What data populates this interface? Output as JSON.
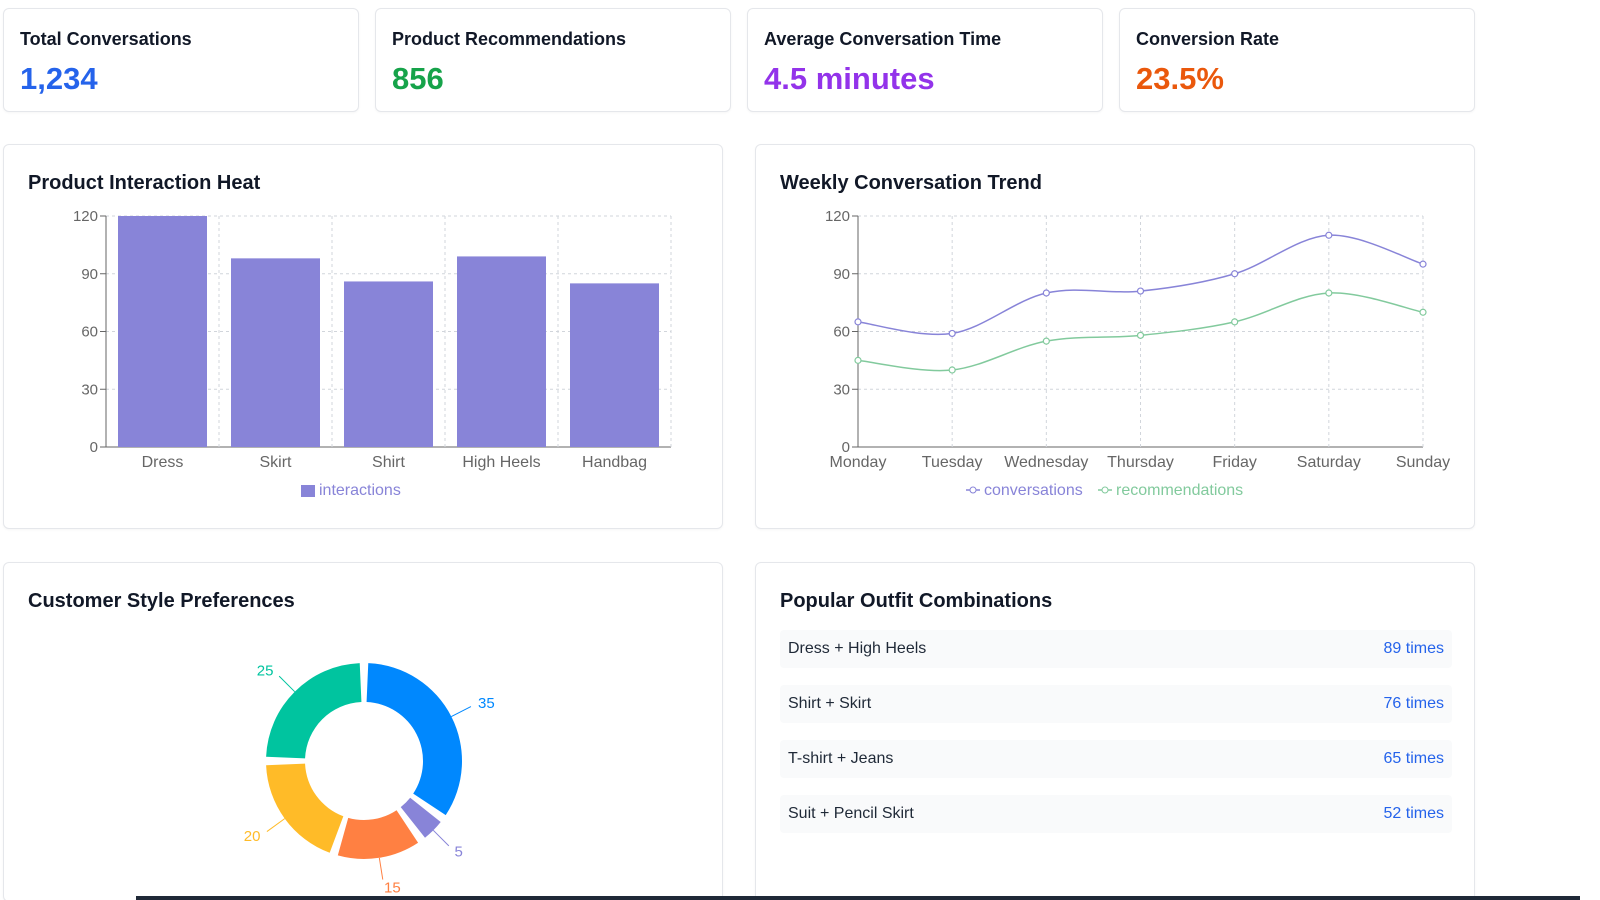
{
  "stats": [
    {
      "title": "Total Conversations",
      "value": "1,234",
      "color": "#2563eb"
    },
    {
      "title": "Product Recommendations",
      "value": "856",
      "color": "#16a34a"
    },
    {
      "title": "Average Conversation Time",
      "value": "4.5 minutes",
      "color": "#9333ea"
    },
    {
      "title": "Conversion Rate",
      "value": "23.5%",
      "color": "#ea580c"
    }
  ],
  "panels": {
    "heat_title": "Product Interaction Heat",
    "trend_title": "Weekly Conversation Trend",
    "style_title": "Customer Style Preferences",
    "outfit_title": "Popular Outfit Combinations"
  },
  "outfits": [
    {
      "name": "Dress + High Heels",
      "count": "89 times"
    },
    {
      "name": "Shirt + Skirt",
      "count": "76 times"
    },
    {
      "name": "T-shirt + Jeans",
      "count": "65 times"
    },
    {
      "name": "Suit + Pencil Skirt",
      "count": "52 times"
    }
  ],
  "chart_data": [
    {
      "type": "bar",
      "title": "Product Interaction Heat",
      "categories": [
        "Dress",
        "Skirt",
        "Shirt",
        "High Heels",
        "Handbag"
      ],
      "series": [
        {
          "name": "interactions",
          "values": [
            120,
            98,
            86,
            99,
            85
          ],
          "color": "#8884d8"
        }
      ],
      "ylim": [
        0,
        120
      ],
      "yticks": [
        0,
        30,
        60,
        90,
        120
      ],
      "grid": true,
      "legend": "bottom"
    },
    {
      "type": "line",
      "title": "Weekly Conversation Trend",
      "categories": [
        "Monday",
        "Tuesday",
        "Wednesday",
        "Thursday",
        "Friday",
        "Saturday",
        "Sunday"
      ],
      "series": [
        {
          "name": "conversations",
          "values": [
            65,
            59,
            80,
            81,
            90,
            110,
            95
          ],
          "color": "#8884d8"
        },
        {
          "name": "recommendations",
          "values": [
            45,
            40,
            55,
            58,
            65,
            80,
            70
          ],
          "color": "#82ca9d"
        }
      ],
      "ylim": [
        0,
        120
      ],
      "yticks": [
        0,
        30,
        60,
        90,
        120
      ],
      "grid": true,
      "legend": "bottom"
    },
    {
      "type": "pie",
      "title": "Customer Style Preferences",
      "slices": [
        {
          "value": 35,
          "color": "#0088fe"
        },
        {
          "value": 5,
          "color": "#8884d8"
        },
        {
          "value": 15,
          "color": "#ff8042"
        },
        {
          "value": 20,
          "color": "#ffbb28"
        },
        {
          "value": 25,
          "color": "#00c49f"
        }
      ]
    }
  ]
}
